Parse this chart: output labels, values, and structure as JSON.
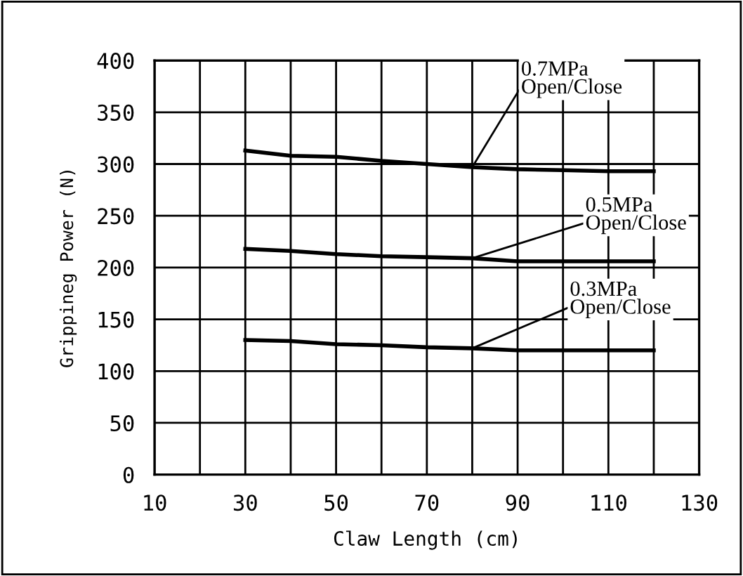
{
  "chart_data": {
    "type": "line",
    "xlabel": "Claw Length (cm)",
    "ylabel": "Grippineg Power (N)",
    "x": [
      30,
      40,
      50,
      60,
      70,
      80,
      90,
      100,
      110,
      120
    ],
    "series": [
      {
        "name": "0.7MPa\nOpen/Close",
        "color": "#000000",
        "values": [
          313,
          308,
          307,
          303,
          300,
          297,
          295,
          294,
          293,
          293
        ]
      },
      {
        "name": "0.5MPa\nOpen/Close",
        "color": "#000000",
        "values": [
          218,
          216,
          213,
          211,
          210,
          209,
          206,
          206,
          206,
          206
        ]
      },
      {
        "name": "0.3MPa\nOpen/Close",
        "color": "#000000",
        "values": [
          130,
          129,
          126,
          125,
          123,
          122,
          120,
          120,
          120,
          120
        ]
      }
    ],
    "xlim": [
      10,
      130
    ],
    "ylim": [
      0,
      400
    ],
    "xticks": [
      10,
      {
        "value": 20,
        "label": null
      },
      30,
      {
        "value": 40,
        "label": null
      },
      50,
      {
        "value": 60,
        "label": null
      },
      70,
      {
        "value": 80,
        "label": null
      },
      90,
      {
        "value": 100,
        "label": null
      },
      110,
      {
        "value": 120,
        "label": null
      },
      130
    ],
    "yticks": [
      0,
      50,
      100,
      150,
      200,
      250,
      300,
      350,
      400
    ],
    "grid": true,
    "legend": false,
    "marker": "none",
    "line_style": "solid"
  }
}
